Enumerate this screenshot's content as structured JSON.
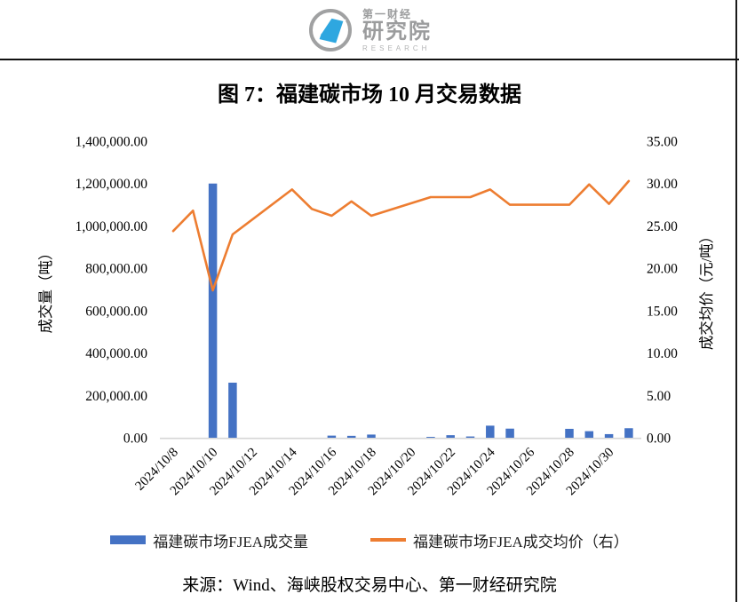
{
  "logo": {
    "line1": "第一财经",
    "line2": "研究院",
    "line3": "RESEARCH"
  },
  "chart_data": {
    "type": "bar+line combo",
    "title": "图 7：福建碳市场 10 月交易数据",
    "categories": [
      "2024/10/8",
      "2024/10/9",
      "2024/10/10",
      "2024/10/11",
      "2024/10/14",
      "2024/10/15",
      "2024/10/16",
      "2024/10/17",
      "2024/10/18",
      "2024/10/21",
      "2024/10/22",
      "2024/10/23",
      "2024/10/24",
      "2024/10/25",
      "2024/10/28",
      "2024/10/29",
      "2024/10/30",
      "2024/10/31"
    ],
    "series": [
      {
        "name": "福建碳市场FJEA成交量",
        "type": "bar",
        "axis": "left",
        "color": "#4472C4",
        "values": [
          0,
          0,
          1200000,
          260000,
          0,
          0,
          10000,
          9000,
          15000,
          4000,
          12000,
          6000,
          57000,
          43000,
          42000,
          31000,
          17000,
          45000
        ]
      },
      {
        "name": "福建碳市场FJEA成交均价（右）",
        "type": "line",
        "axis": "right",
        "color": "#ED7D31",
        "values": [
          24.4,
          26.8,
          17.4,
          24.0,
          29.3,
          27.0,
          26.2,
          27.9,
          26.2,
          28.4,
          28.4,
          28.4,
          29.3,
          27.5,
          27.5,
          29.9,
          27.6,
          30.3
        ]
      }
    ],
    "left_axis": {
      "title": "成交量（吨）",
      "min": 0,
      "max": 1400000,
      "step": 200000
    },
    "right_axis": {
      "title": "成交均价（元/吨）",
      "min": 0,
      "max": 35,
      "step": 5
    },
    "x_tick_labels": [
      "2024/10/8",
      "2024/10/10",
      "2024/10/12",
      "2024/10/14",
      "2024/10/16",
      "2024/10/18",
      "2024/10/20",
      "2024/10/22",
      "2024/10/24",
      "2024/10/26",
      "2024/10/28",
      "2024/10/30"
    ],
    "grid": false,
    "legend_position": "bottom",
    "baseline_color": "#D6D6D6"
  },
  "footer": {
    "source": "来源：Wind、海峡股权交易中心、第一财经研究院"
  }
}
